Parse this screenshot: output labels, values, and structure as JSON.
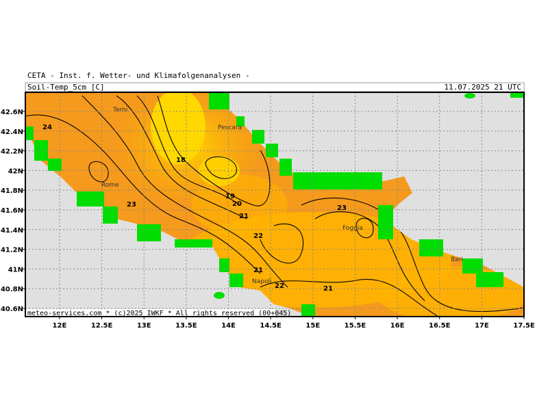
{
  "header": {
    "title": "CETA - Inst. f. Wetter- und Klimafolgenanalysen -",
    "parameter": "Soil-Temp_5cm [C]",
    "valid": "11.07.2025 21 UTC"
  },
  "footer": "meteo-services.com * (c)2025 IWKF * All rights reserved (00+045)",
  "map": {
    "xlim": [
      11.595,
      17.5
    ],
    "ylim": [
      40.517,
      42.794
    ],
    "xticks": [
      {
        "value": 12,
        "label": "12E"
      },
      {
        "value": 12.5,
        "label": "12.5E"
      },
      {
        "value": 13,
        "label": "13E"
      },
      {
        "value": 13.5,
        "label": "13.5E"
      },
      {
        "value": 14,
        "label": "14E"
      },
      {
        "value": 14.5,
        "label": "14.5E"
      },
      {
        "value": 15,
        "label": "15E"
      },
      {
        "value": 15.5,
        "label": "15.5E"
      },
      {
        "value": 16,
        "label": "16E"
      },
      {
        "value": 16.5,
        "label": "16.5E"
      },
      {
        "value": 17,
        "label": "17E"
      },
      {
        "value": 17.5,
        "label": "17.5E"
      }
    ],
    "yticks": [
      {
        "value": 40.6,
        "label": "40.6N"
      },
      {
        "value": 40.8,
        "label": "40.8N"
      },
      {
        "value": 41,
        "label": "41N"
      },
      {
        "value": 41.2,
        "label": "41.2N"
      },
      {
        "value": 41.4,
        "label": "41.4N"
      },
      {
        "value": 41.6,
        "label": "41.6N"
      },
      {
        "value": 41.8,
        "label": "41.8N"
      },
      {
        "value": 42,
        "label": "42N"
      },
      {
        "value": 42.2,
        "label": "42.2N"
      },
      {
        "value": 42.4,
        "label": "42.4N"
      },
      {
        "value": 42.6,
        "label": "42.6N"
      }
    ],
    "grid": true,
    "cities": [
      "Terni",
      "Pescara",
      "Rome",
      "Napoli",
      "Foggia",
      "Bari"
    ],
    "contour_labels": [
      24,
      18,
      19,
      20,
      21,
      23,
      22,
      23,
      21,
      22,
      21
    ]
  }
}
